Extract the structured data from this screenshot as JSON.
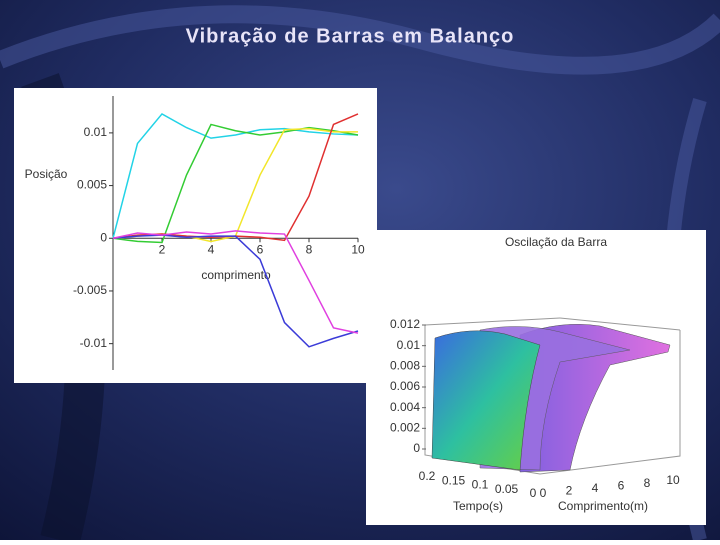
{
  "title": "Vibração de Barras em Balanço",
  "chart_data": [
    {
      "type": "line",
      "ylabel": "Posição",
      "xlabel": "comprimento",
      "x": [
        0,
        1,
        2,
        3,
        4,
        5,
        6,
        7,
        8,
        9,
        10
      ],
      "xlim": [
        0,
        10
      ],
      "xticks": [
        2,
        4,
        6,
        8,
        10
      ],
      "ylim": [
        -0.0125,
        0.0135
      ],
      "yticks": [
        0.01,
        0.005,
        0,
        -0.005,
        -0.01
      ],
      "series": [
        {
          "color": "#22d3e6",
          "values": [
            0,
            0.009,
            0.0118,
            0.0105,
            0.0095,
            0.0098,
            0.0103,
            0.0104,
            0.0101,
            0.0099,
            0.0098
          ]
        },
        {
          "color": "#33cc33",
          "values": [
            0,
            -0.0003,
            -0.0004,
            0.006,
            0.0108,
            0.0102,
            0.0098,
            0.0101,
            0.0105,
            0.0102,
            0.0098
          ]
        },
        {
          "color": "#f2e62a",
          "values": [
            0,
            0.0002,
            0.0004,
            0.0002,
            -0.0003,
            0.0002,
            0.006,
            0.0103,
            0.0104,
            0.0101,
            0.0101
          ]
        },
        {
          "color": "#e03030",
          "values": [
            0,
            0.0003,
            0.0004,
            0.0002,
            0.0001,
            0.0002,
            0.0001,
            -0.0002,
            0.004,
            0.0108,
            0.0118
          ]
        },
        {
          "color": "#3b3bd8",
          "values": [
            0,
            0.0002,
            0.0003,
            0.0001,
            0.0002,
            0.0002,
            -0.002,
            -0.008,
            -0.0103,
            -0.0095,
            -0.0088
          ]
        },
        {
          "color": "#e040e0",
          "values": [
            0,
            0.0005,
            0.0003,
            0.0006,
            0.0004,
            0.0007,
            0.0005,
            0.0004,
            -0.004,
            -0.0085,
            -0.009
          ]
        }
      ]
    },
    {
      "type": "surface",
      "title": "Oscilação da Barra",
      "xlabel": "Comprimento(m)",
      "ylabel": "Tempo(s)",
      "xlim": [
        0,
        10
      ],
      "xticks": [
        0,
        2,
        4,
        6,
        8,
        10
      ],
      "ylim": [
        0.2,
        0
      ],
      "yticks": [
        0.2,
        0.15,
        0.1,
        0.05,
        0
      ],
      "zlim": [
        0,
        0.012
      ],
      "zticks": [
        0.012,
        0.01,
        0.008,
        0.006,
        0.004,
        0.002,
        0
      ]
    }
  ]
}
